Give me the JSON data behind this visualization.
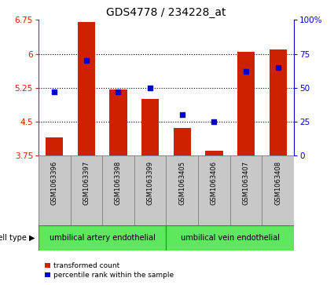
{
  "title": "GDS4778 / 234228_at",
  "samples": [
    "GSM1063396",
    "GSM1063397",
    "GSM1063398",
    "GSM1063399",
    "GSM1063405",
    "GSM1063406",
    "GSM1063407",
    "GSM1063408"
  ],
  "red_values": [
    4.15,
    6.7,
    5.2,
    5.0,
    4.35,
    3.85,
    6.05,
    6.1
  ],
  "blue_values": [
    47,
    70,
    47,
    50,
    30,
    25,
    62,
    65
  ],
  "y_min": 3.75,
  "y_max": 6.75,
  "y_ticks": [
    3.75,
    4.5,
    5.25,
    6.0,
    6.75
  ],
  "y_tick_labels": [
    "3.75",
    "4.5",
    "5.25",
    "6",
    "6.75"
  ],
  "y2_ticks": [
    0,
    25,
    50,
    75,
    100
  ],
  "y2_tick_labels": [
    "0",
    "25",
    "50",
    "75",
    "100%"
  ],
  "grid_values": [
    6.0,
    5.25,
    4.5
  ],
  "groups": [
    {
      "label": "umbilical artery endothelial",
      "indices": [
        0,
        1,
        2,
        3
      ]
    },
    {
      "label": "umbilical vein endothelial",
      "indices": [
        4,
        5,
        6,
        7
      ]
    }
  ],
  "cell_type_label": "cell type",
  "legend_red": "transformed count",
  "legend_blue": "percentile rank within the sample",
  "bar_color": "#CC2200",
  "dot_color": "#0000CC",
  "title_fontsize": 10,
  "tick_fontsize": 7.5,
  "left_ytick_color": "#CC2200",
  "right_ytick_color": "#0000CC",
  "bar_width": 0.55,
  "cell_bg": "#C8C8C8",
  "group_bg": "#5EE85E",
  "group_border": "#00AA00"
}
